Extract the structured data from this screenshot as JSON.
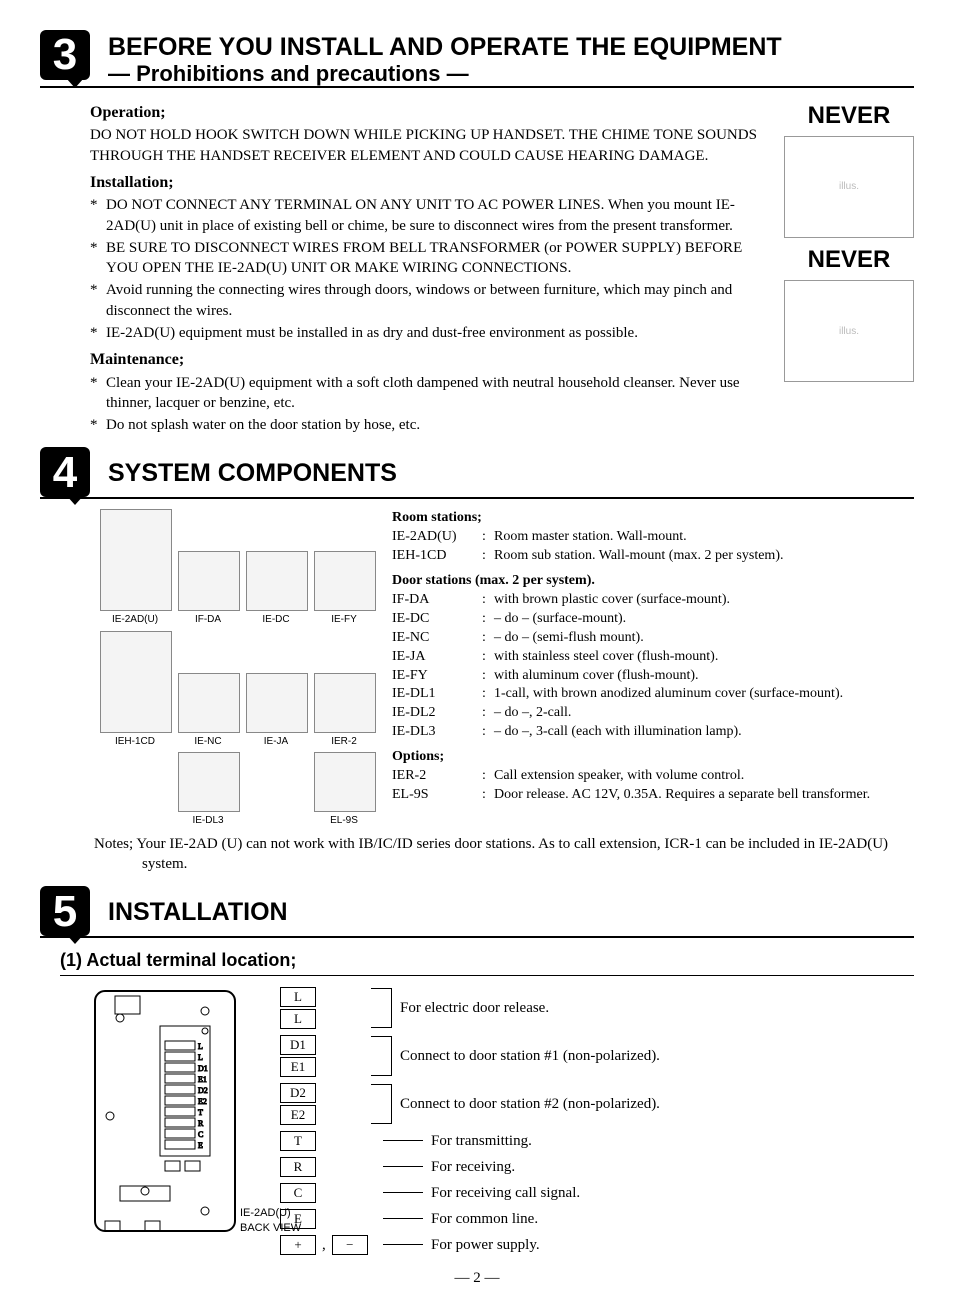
{
  "section3": {
    "number": "3",
    "title": "BEFORE YOU INSTALL AND OPERATE THE EQUIPMENT",
    "subtitle": "— Prohibitions and precautions —",
    "operation": {
      "heading": "Operation;",
      "text": "DO NOT HOLD HOOK SWITCH DOWN WHILE PICKING UP HANDSET. THE CHIME TONE SOUNDS THROUGH THE HANDSET RECEIVER ELEMENT AND COULD CAUSE HEARING DAMAGE."
    },
    "installation": {
      "heading": "Installation;",
      "items": [
        "DO NOT CONNECT ANY TERMINAL ON ANY UNIT TO AC POWER LINES. When you mount IE-2AD(U) unit in place of existing bell or chime, be sure to disconnect wires from the present transformer.",
        "BE SURE TO DISCONNECT WIRES FROM BELL TRANSFORMER (or POWER SUPPLY) BEFORE YOU OPEN THE IE-2AD(U) UNIT OR MAKE WIRING CONNECTIONS.",
        "Avoid running the connecting wires through doors, windows or between furniture, which may pinch and disconnect the wires.",
        "IE-2AD(U) equipment must be installed in as dry and dust-free environment as possible."
      ]
    },
    "maintenance": {
      "heading": "Maintenance;",
      "items": [
        "Clean your IE-2AD(U) equipment with a soft cloth dampened with neutral household cleanser. Never use thinner, lacquer or benzine, etc.",
        "Do not splash water on the door station by hose, etc."
      ]
    },
    "never_label": "NEVER"
  },
  "section4": {
    "number": "4",
    "title": "SYSTEM COMPONENTS",
    "thumbnails": [
      "IE-2AD(U)",
      "IF-DA",
      "IE-DC",
      "IE-FY",
      "IEH-1CD",
      "IE-NC",
      "IE-JA",
      "IER-2",
      "",
      "IE-DL3",
      "",
      "EL-9S"
    ],
    "room": {
      "heading": "Room stations;",
      "items": [
        {
          "code": "IE-2AD(U)",
          "desc": "Room master station. Wall-mount."
        },
        {
          "code": "IEH-1CD",
          "desc": "Room sub station. Wall-mount (max. 2 per system)."
        }
      ]
    },
    "door": {
      "heading": "Door stations (max. 2 per system).",
      "items": [
        {
          "code": "IF-DA",
          "desc": "with brown plastic cover (surface-mount)."
        },
        {
          "code": "IE-DC",
          "desc": "– do – (surface-mount)."
        },
        {
          "code": "IE-NC",
          "desc": "– do – (semi-flush mount)."
        },
        {
          "code": "IE-JA",
          "desc": "with stainless steel cover (flush-mount)."
        },
        {
          "code": "IE-FY",
          "desc": "with aluminum cover (flush-mount)."
        },
        {
          "code": "IE-DL1",
          "desc": "1-call, with brown anodized aluminum cover (surface-mount)."
        },
        {
          "code": "IE-DL2",
          "desc": "– do –, 2-call."
        },
        {
          "code": "IE-DL3",
          "desc": "– do –, 3-call (each with illumination lamp)."
        }
      ]
    },
    "options": {
      "heading": "Options;",
      "items": [
        {
          "code": "IER-2",
          "desc": "Call extension speaker, with volume control."
        },
        {
          "code": "EL-9S",
          "desc": "Door release. AC 12V, 0.35A. Requires a separate bell transformer."
        }
      ]
    },
    "notes": "Notes; Your IE-2AD (U) can not work with IB/IC/ID series door stations. As to call extension, ICR-1 can be included in IE-2AD(U) system."
  },
  "section5": {
    "number": "5",
    "title": "INSTALLATION",
    "sub_heading": "(1)  Actual terminal location;",
    "backview_label": "IE-2AD(U)\nBACK VIEW",
    "terminals": [
      {
        "boxes": [
          "L",
          "L"
        ],
        "bracket": true,
        "desc": "For electric door release."
      },
      {
        "boxes": [
          "D1",
          "E1"
        ],
        "bracket": true,
        "desc": "Connect to door station #1 (non-polarized)."
      },
      {
        "boxes": [
          "D2",
          "E2"
        ],
        "bracket": true,
        "desc": "Connect to door station #2 (non-polarized)."
      },
      {
        "boxes": [
          "T"
        ],
        "bracket": false,
        "desc": "For transmitting."
      },
      {
        "boxes": [
          "R"
        ],
        "bracket": false,
        "desc": "For receiving."
      },
      {
        "boxes": [
          "C"
        ],
        "bracket": false,
        "desc": "For receiving call signal."
      },
      {
        "boxes": [
          "E"
        ],
        "bracket": false,
        "desc": "For common line."
      },
      {
        "boxes": [
          "+",
          "−"
        ],
        "bracket": false,
        "inline": true,
        "desc": "For power supply."
      }
    ]
  },
  "page_number": "— 2 —"
}
